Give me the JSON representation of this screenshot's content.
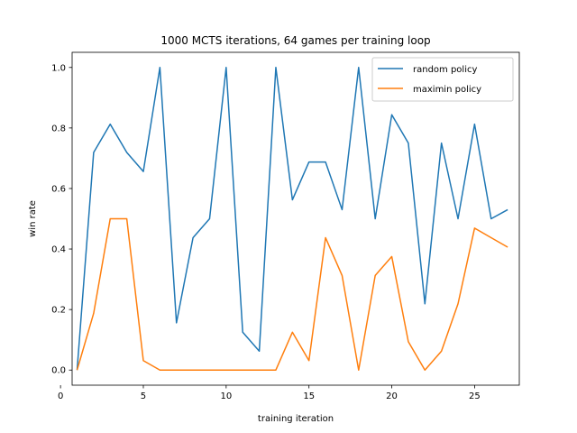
{
  "chart_data": {
    "type": "line",
    "title": "1000 MCTS iterations, 64 games per training loop",
    "xlabel": "training iteration",
    "ylabel": "win rate",
    "xlim": [
      0.7,
      27.7
    ],
    "ylim": [
      -0.05,
      1.05
    ],
    "xticks": [
      0,
      5,
      10,
      15,
      20,
      25
    ],
    "yticks": [
      0.0,
      0.2,
      0.4,
      0.6,
      0.8,
      1.0
    ],
    "ytick_labels": [
      "0.0",
      "0.2",
      "0.4",
      "0.6",
      "0.8",
      "1.0"
    ],
    "grid": false,
    "legend_position": "top-right",
    "x": [
      1,
      2,
      3,
      4,
      5,
      6,
      7,
      8,
      9,
      10,
      11,
      12,
      13,
      14,
      15,
      16,
      17,
      18,
      19,
      20,
      21,
      22,
      23,
      24,
      25,
      26,
      27
    ],
    "series": [
      {
        "name": "random policy",
        "color": "#1f77b4",
        "values": [
          0.0,
          0.719,
          0.8125,
          0.719,
          0.656,
          1.0,
          0.156,
          0.4375,
          0.5,
          1.0,
          0.125,
          0.0625,
          1.0,
          0.5625,
          0.6875,
          0.6875,
          0.53,
          1.0,
          0.5,
          0.84375,
          0.75,
          0.219,
          0.75,
          0.5,
          0.8125,
          0.5,
          0.53
        ]
      },
      {
        "name": "maximin policy",
        "color": "#ff7f0e",
        "values": [
          0.0,
          0.1875,
          0.5,
          0.5,
          0.03125,
          0.0,
          0.0,
          0.0,
          0.0,
          0.0,
          0.0,
          0.0,
          0.0,
          0.125,
          0.03125,
          0.4375,
          0.3125,
          0.0,
          0.3125,
          0.375,
          0.09375,
          0.0,
          0.0625,
          0.219,
          0.469,
          0.4375,
          0.406
        ]
      }
    ]
  }
}
